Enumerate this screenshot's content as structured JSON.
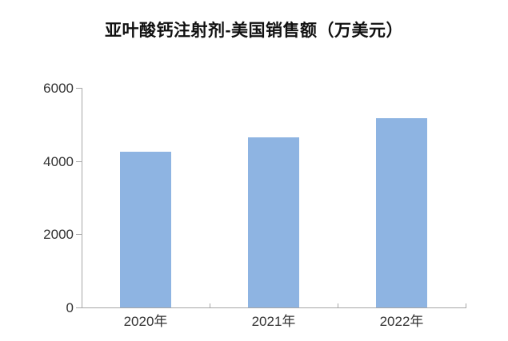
{
  "chart_data": {
    "type": "bar",
    "title": "亚叶酸钙注射剂-美国销售额（万美元）",
    "categories": [
      "2020年",
      "2021年",
      "2022年"
    ],
    "values": [
      4250,
      4650,
      5170
    ],
    "series": [
      {
        "name": "美国销售额",
        "values": [
          4250,
          4650,
          5170
        ]
      }
    ],
    "xlabel": "",
    "ylabel": "",
    "ylim": [
      0,
      6000
    ],
    "yticks": [
      0,
      2000,
      4000,
      6000
    ],
    "ytick_labels": [
      "0",
      "2000",
      "4000",
      "6000"
    ],
    "grid": false,
    "legend": false,
    "colors": {
      "bar_fill": "#8EB4E2",
      "axis_line": "#A6A6A6",
      "tick_text": "#333333",
      "title_text": "#111111",
      "background": "#FFFFFF"
    }
  }
}
